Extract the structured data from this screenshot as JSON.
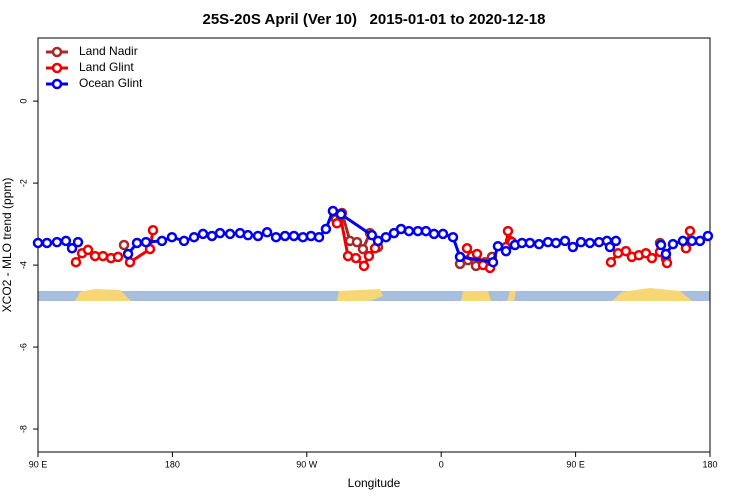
{
  "chart_data": {
    "type": "line",
    "title": "25S-20S April (Ver 10)   2015-01-01 to 2020-12-18",
    "xlabel": "Longitude",
    "ylabel": "XCO2 - MLO trend (ppm)",
    "xlim": [
      90,
      540
    ],
    "ylim": [
      -8.56,
      1.54
    ],
    "xticks": [
      {
        "value": 90,
        "label": "90 E"
      },
      {
        "value": 180,
        "label": "180"
      },
      {
        "value": 270,
        "label": "90 W"
      },
      {
        "value": 360,
        "label": "0"
      },
      {
        "value": 450,
        "label": "90 E"
      },
      {
        "value": 540,
        "label": "180"
      }
    ],
    "yticks": [
      0,
      -2,
      -4,
      -6,
      -8
    ],
    "legend": "top-left",
    "series": [
      {
        "name": "Land Nadir",
        "color": "#a52a2a",
        "x": [
          147.6,
          null,
          289.5,
          293.6,
          298.9,
          303.6,
          307.6,
          312.3,
          317.7,
          null,
          372.6,
          377.9,
          383.3,
          389.3,
          394.0,
          null,
          406.1,
          null,
          506.5,
          510.5
        ],
        "values": [
          -3.51,
          null,
          -2.88,
          -2.73,
          -3.41,
          -3.44,
          -3.61,
          -3.22,
          -3.56,
          null,
          -3.97,
          -3.88,
          -4.02,
          -3.93,
          -3.8,
          null,
          -3.41,
          null,
          -3.46,
          -3.85
        ]
      },
      {
        "name": "Land Glint",
        "color": "#ee0000",
        "x": [
          115.4,
          119.5,
          123.5,
          128.2,
          133.5,
          138.9,
          143.6,
          null,
          151.6,
          165.0,
          167.0,
          null,
          290.2,
          292.2,
          297.6,
          302.9,
          308.3,
          311.6,
          315.7,
          null,
          377.3,
          380.6,
          384.0,
          388.0,
          392.7,
          null,
          403.4,
          404.7,
          407.4,
          null,
          473.7,
          478.4,
          483.7,
          487.7,
          492.4,
          497.1,
          501.1,
          506.5,
          511.2,
          null,
          523.9,
          526.6
        ],
        "values": [
          -3.93,
          -3.71,
          -3.63,
          -3.78,
          -3.78,
          -3.83,
          -3.8,
          null,
          -3.93,
          -3.61,
          -3.15,
          null,
          -2.98,
          -2.76,
          -3.78,
          -3.83,
          -4.02,
          -3.78,
          -3.59,
          null,
          -3.59,
          -3.78,
          -3.73,
          -4.0,
          -4.07,
          null,
          -3.56,
          -3.17,
          -3.44,
          null,
          -3.93,
          -3.71,
          -3.66,
          -3.8,
          -3.76,
          -3.71,
          -3.83,
          -3.68,
          -3.95,
          null,
          -3.59,
          -3.17
        ]
      },
      {
        "name": "Ocean Glint",
        "color": "#0000ee",
        "x": [
          90.0,
          96.0,
          102.7,
          108.7,
          112.8,
          116.8,
          null,
          150.3,
          156.3,
          162.3,
          173.0,
          179.7,
          187.8,
          194.5,
          200.5,
          206.5,
          211.9,
          218.6,
          225.3,
          230.6,
          237.3,
          243.4,
          249.4,
          255.4,
          261.4,
          267.4,
          272.8,
          278.2,
          282.8,
          287.5,
          292.9,
          313.6,
          317.7,
          323.0,
          328.4,
          333.1,
          338.4,
          344.4,
          349.8,
          355.2,
          361.2,
          367.9,
          372.6,
          394.7,
          398.0,
          403.4,
          409.4,
          414.1,
          419.4,
          425.5,
          431.5,
          436.9,
          442.9,
          448.2,
          453.6,
          459.6,
          465.7,
          471.0,
          473.0,
          477.0,
          null,
          507.2,
          510.5,
          515.2,
          521.9,
          527.9,
          533.3,
          538.6
        ],
        "values": [
          -3.46,
          -3.46,
          -3.44,
          -3.41,
          -3.59,
          -3.44,
          null,
          -3.73,
          -3.46,
          -3.44,
          -3.41,
          -3.32,
          -3.41,
          -3.32,
          -3.24,
          -3.29,
          -3.22,
          -3.24,
          -3.22,
          -3.27,
          -3.29,
          -3.2,
          -3.32,
          -3.29,
          -3.29,
          -3.32,
          -3.29,
          -3.32,
          -3.12,
          -2.68,
          -2.76,
          -3.27,
          -3.41,
          -3.32,
          -3.22,
          -3.12,
          -3.17,
          -3.17,
          -3.17,
          -3.24,
          -3.24,
          -3.32,
          -3.8,
          -3.93,
          -3.54,
          -3.66,
          -3.51,
          -3.46,
          -3.46,
          -3.49,
          -3.44,
          -3.46,
          -3.41,
          -3.56,
          -3.44,
          -3.46,
          -3.44,
          -3.41,
          -3.56,
          -3.41,
          null,
          -3.51,
          -3.73,
          -3.49,
          -3.41,
          -3.41,
          -3.41,
          -3.29
        ]
      }
    ]
  }
}
